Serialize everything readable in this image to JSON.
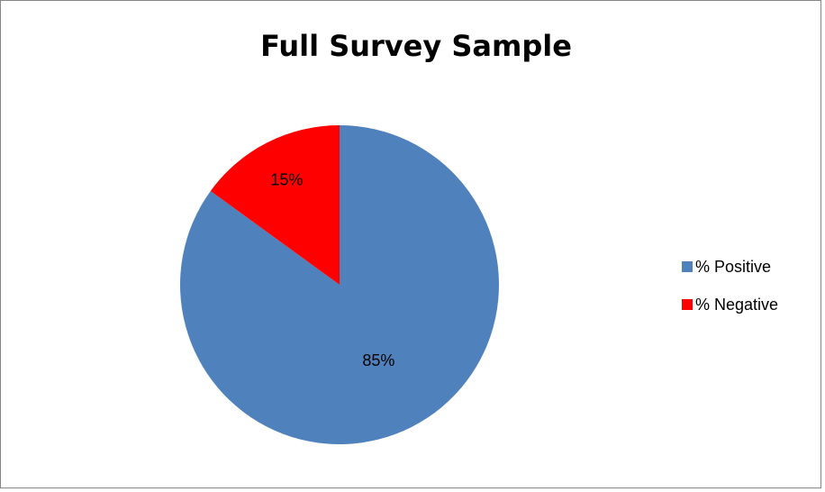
{
  "chart_data": {
    "type": "pie",
    "title": "Full Survey Sample",
    "slices": [
      {
        "label": "% Positive",
        "value": 85,
        "data_label": "85%",
        "color": "#4F81BD"
      },
      {
        "label": "% Negative",
        "value": 15,
        "data_label": "15%",
        "color": "#FF0000"
      }
    ],
    "start_angle_deg": 0,
    "direction": "clockwise",
    "legend_position": "right"
  }
}
